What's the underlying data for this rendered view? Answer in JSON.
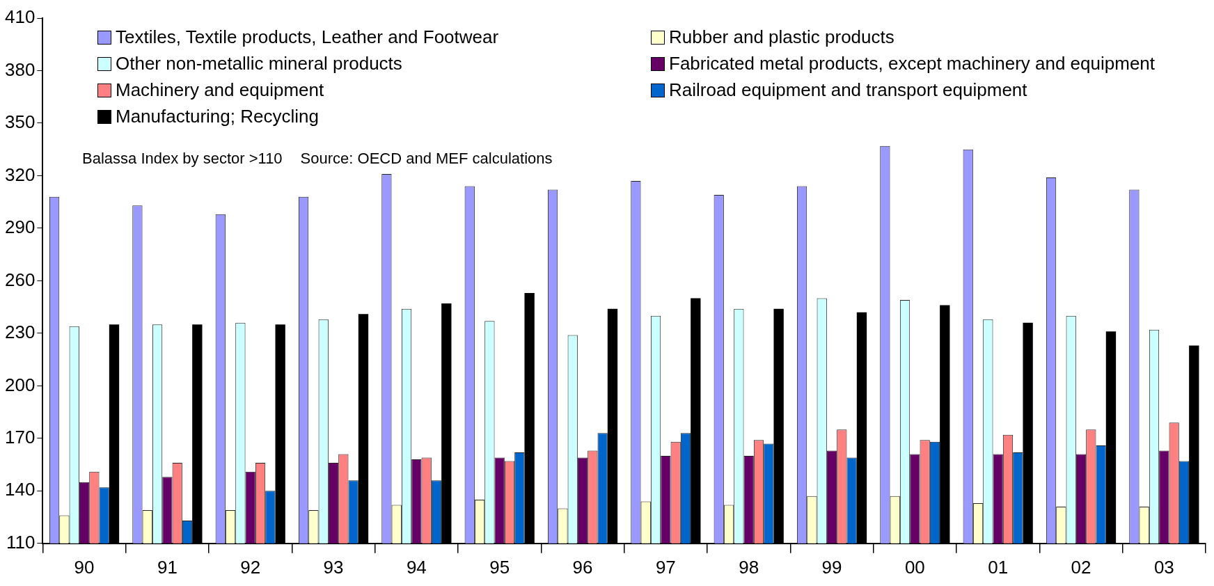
{
  "chart_data": {
    "type": "bar",
    "categories": [
      "90",
      "91",
      "92",
      "93",
      "94",
      "95",
      "96",
      "97",
      "98",
      "99",
      "00",
      "01",
      "02",
      "03"
    ],
    "series": [
      {
        "name": "Textiles, Textile products, Leather and Footwear",
        "color": "#9999ff",
        "values": [
          308,
          303,
          298,
          308,
          321,
          314,
          312,
          317,
          309,
          314,
          337,
          335,
          319,
          312
        ]
      },
      {
        "name": "Rubber and plastic products",
        "color": "#ffffcc",
        "values": [
          126,
          129,
          129,
          129,
          132,
          135,
          130,
          134,
          132,
          137,
          137,
          133,
          131,
          131
        ]
      },
      {
        "name": "Other non-metallic mineral products",
        "color": "#ccffff",
        "values": [
          234,
          235,
          236,
          238,
          244,
          237,
          229,
          240,
          244,
          250,
          249,
          238,
          240,
          232
        ]
      },
      {
        "name": "Fabricated metal products, except machinery and equipment",
        "color": "#660066",
        "values": [
          145,
          148,
          151,
          156,
          158,
          159,
          159,
          160,
          160,
          163,
          161,
          161,
          161,
          163
        ]
      },
      {
        "name": "Machinery and equipment",
        "color": "#ff8080",
        "values": [
          151,
          156,
          156,
          161,
          159,
          157,
          163,
          168,
          169,
          175,
          169,
          172,
          175,
          179
        ]
      },
      {
        "name": "Railroad equipment and transport equipment",
        "color": "#0066cc",
        "values": [
          142,
          123,
          140,
          146,
          146,
          162,
          173,
          173,
          167,
          159,
          168,
          162,
          166,
          157
        ]
      },
      {
        "name": "Manufacturing; Recycling",
        "color": "#000000",
        "values": [
          235,
          235,
          235,
          241,
          247,
          253,
          244,
          250,
          244,
          242,
          246,
          236,
          231,
          223
        ]
      }
    ],
    "ylim": [
      110,
      410
    ],
    "yticks": [
      110,
      140,
      170,
      200,
      230,
      260,
      290,
      320,
      350,
      380,
      410
    ],
    "grid": false,
    "legend": "top left",
    "annotations": [
      "Balassa Index by sector >110",
      "Source: OECD and MEF calculations"
    ]
  }
}
